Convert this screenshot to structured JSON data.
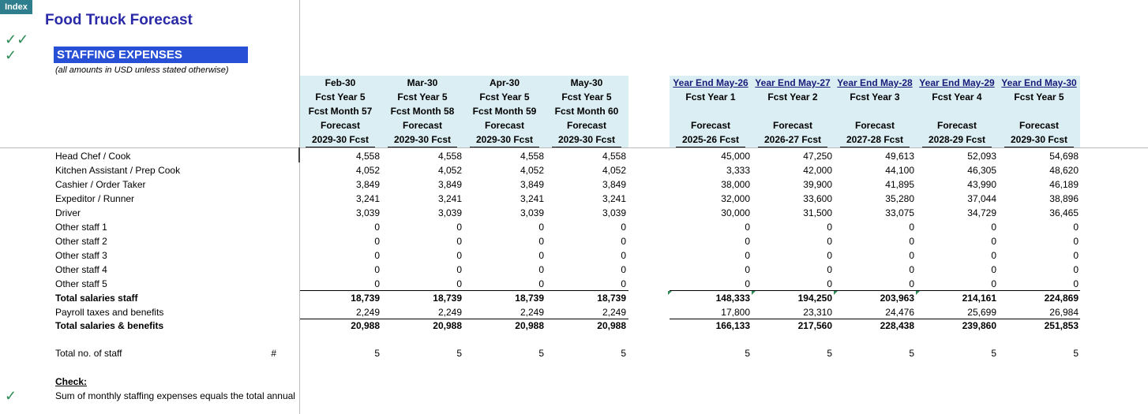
{
  "index_label": "Index",
  "title": "Food Truck Forecast",
  "checkmarks": {
    "double": "✓✓",
    "single": "✓"
  },
  "section_title": "STAFFING EXPENSES",
  "subtitle": "(all amounts in USD unless stated otherwise)",
  "monthly_headers": [
    {
      "month": "Feb-30",
      "year": "Fcst Year 5",
      "fcst_month": "Fcst Month 57",
      "type": "Forecast",
      "fy": "2029-30 Fcst"
    },
    {
      "month": "Mar-30",
      "year": "Fcst Year 5",
      "fcst_month": "Fcst Month 58",
      "type": "Forecast",
      "fy": "2029-30 Fcst"
    },
    {
      "month": "Apr-30",
      "year": "Fcst Year 5",
      "fcst_month": "Fcst Month 59",
      "type": "Forecast",
      "fy": "2029-30 Fcst"
    },
    {
      "month": "May-30",
      "year": "Fcst Year 5",
      "fcst_month": "Fcst Month 60",
      "type": "Forecast",
      "fy": "2029-30 Fcst"
    }
  ],
  "annual_headers": [
    {
      "period": "Year End May-26",
      "year": "Fcst Year 1",
      "type": "Forecast",
      "fy": "2025-26 Fcst"
    },
    {
      "period": "Year End May-27",
      "year": "Fcst Year 2",
      "type": "Forecast",
      "fy": "2026-27 Fcst"
    },
    {
      "period": "Year End May-28",
      "year": "Fcst Year 3",
      "type": "Forecast",
      "fy": "2027-28 Fcst"
    },
    {
      "period": "Year End May-29",
      "year": "Fcst Year 4",
      "type": "Forecast",
      "fy": "2028-29 Fcst"
    },
    {
      "period": "Year End May-30",
      "year": "Fcst Year 5",
      "type": "Forecast",
      "fy": "2029-30 Fcst"
    }
  ],
  "rows": [
    {
      "label": "Head Chef / Cook",
      "monthly": [
        "4,558",
        "4,558",
        "4,558",
        "4,558"
      ],
      "annual": [
        "45,000",
        "47,250",
        "49,613",
        "52,093",
        "54,698"
      ]
    },
    {
      "label": "Kitchen Assistant / Prep Cook",
      "monthly": [
        "4,052",
        "4,052",
        "4,052",
        "4,052"
      ],
      "annual": [
        "3,333",
        "42,000",
        "44,100",
        "46,305",
        "48,620"
      ]
    },
    {
      "label": "Cashier / Order Taker",
      "monthly": [
        "3,849",
        "3,849",
        "3,849",
        "3,849"
      ],
      "annual": [
        "38,000",
        "39,900",
        "41,895",
        "43,990",
        "46,189"
      ]
    },
    {
      "label": "Expeditor / Runner",
      "monthly": [
        "3,241",
        "3,241",
        "3,241",
        "3,241"
      ],
      "annual": [
        "32,000",
        "33,600",
        "35,280",
        "37,044",
        "38,896"
      ]
    },
    {
      "label": "Driver",
      "monthly": [
        "3,039",
        "3,039",
        "3,039",
        "3,039"
      ],
      "annual": [
        "30,000",
        "31,500",
        "33,075",
        "34,729",
        "36,465"
      ]
    },
    {
      "label": "Other staff 1",
      "monthly": [
        "0",
        "0",
        "0",
        "0"
      ],
      "annual": [
        "0",
        "0",
        "0",
        "0",
        "0"
      ]
    },
    {
      "label": "Other staff 2",
      "monthly": [
        "0",
        "0",
        "0",
        "0"
      ],
      "annual": [
        "0",
        "0",
        "0",
        "0",
        "0"
      ]
    },
    {
      "label": "Other staff 3",
      "monthly": [
        "0",
        "0",
        "0",
        "0"
      ],
      "annual": [
        "0",
        "0",
        "0",
        "0",
        "0"
      ]
    },
    {
      "label": "Other staff 4",
      "monthly": [
        "0",
        "0",
        "0",
        "0"
      ],
      "annual": [
        "0",
        "0",
        "0",
        "0",
        "0"
      ]
    },
    {
      "label": "Other staff 5",
      "monthly": [
        "0",
        "0",
        "0",
        "0"
      ],
      "annual": [
        "0",
        "0",
        "0",
        "0",
        "0"
      ]
    },
    {
      "label": "Total salaries staff",
      "bold": true,
      "monthly": [
        "18,739",
        "18,739",
        "18,739",
        "18,739"
      ],
      "annual": [
        "148,333",
        "194,250",
        "203,963",
        "214,161",
        "224,869"
      ]
    },
    {
      "label": "Payroll taxes and benefits",
      "monthly": [
        "2,249",
        "2,249",
        "2,249",
        "2,249"
      ],
      "annual": [
        "17,800",
        "23,310",
        "24,476",
        "25,699",
        "26,984"
      ]
    },
    {
      "label": "Total salaries & benefits",
      "bold": true,
      "monthly": [
        "20,988",
        "20,988",
        "20,988",
        "20,988"
      ],
      "annual": [
        "166,133",
        "217,560",
        "228,438",
        "239,860",
        "251,853"
      ]
    }
  ],
  "staff_row": {
    "label": "Total no. of staff",
    "unit": "#",
    "monthly": [
      "5",
      "5",
      "5",
      "5"
    ],
    "annual": [
      "5",
      "5",
      "5",
      "5",
      "5"
    ]
  },
  "check": {
    "heading": "Check:",
    "text": "Sum of monthly staffing expenses equals the total annual"
  },
  "colors": {
    "accent": "#2850d6",
    "title": "#2a2aa8",
    "header_bg": "#daeef3",
    "check": "#2e8b57",
    "index": "#2f7e8e"
  }
}
